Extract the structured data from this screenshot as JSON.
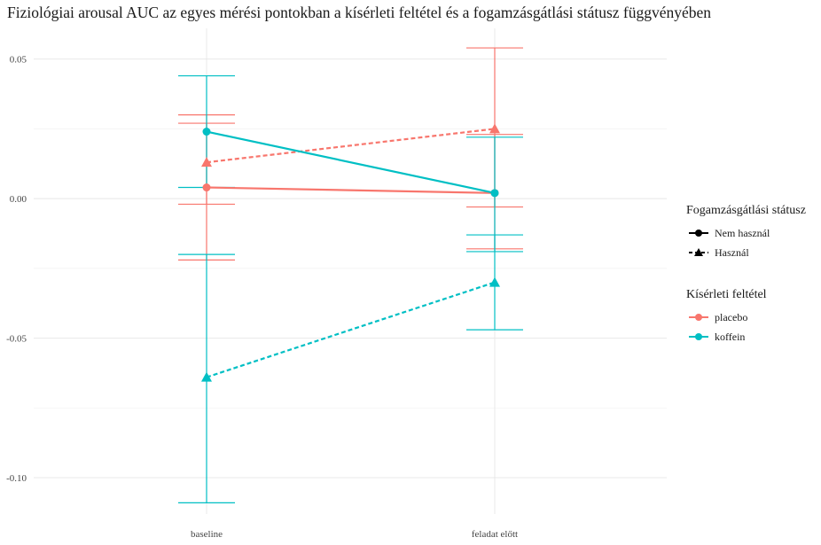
{
  "chart_data": {
    "type": "line",
    "title": "Fiziológiai arousal AUC az egyes mérési pontokban a kísérleti feltétel és a fogamzásgátlási státusz függvényében",
    "xlabel": "",
    "ylabel": "",
    "categories": [
      "baseline",
      "feladat előtt"
    ],
    "ylim": [
      -0.113,
      0.061
    ],
    "yticks": [
      0.05,
      0.0,
      -0.05,
      -0.1
    ],
    "ytick_labels": [
      "0.05",
      "0.00",
      "-0.05",
      "-0.10"
    ],
    "grid": true,
    "series": [
      {
        "condition": "placebo",
        "status": "Nem használ",
        "color": "#F8766D",
        "linetype": "solid",
        "shape": "circle",
        "values": [
          0.004,
          0.002
        ],
        "lower": [
          -0.022,
          -0.018
        ],
        "upper": [
          0.03,
          0.023
        ]
      },
      {
        "condition": "placebo",
        "status": "Használ",
        "color": "#F8766D",
        "linetype": "dashed",
        "shape": "triangle",
        "values": [
          0.013,
          0.025
        ],
        "lower": [
          -0.002,
          -0.003
        ],
        "upper": [
          0.027,
          0.054
        ]
      },
      {
        "condition": "koffein",
        "status": "Nem használ",
        "color": "#00BFC4",
        "linetype": "solid",
        "shape": "circle",
        "values": [
          0.024,
          0.002
        ],
        "lower": [
          0.004,
          -0.019
        ],
        "upper": [
          0.044,
          0.022
        ]
      },
      {
        "condition": "koffein",
        "status": "Használ",
        "color": "#00BFC4",
        "linetype": "dashed",
        "shape": "triangle",
        "values": [
          -0.064,
          -0.03
        ],
        "lower": [
          -0.109,
          -0.047
        ],
        "upper": [
          -0.02,
          -0.013
        ]
      }
    ],
    "legend": {
      "placement": "right",
      "status_title": "Fogamzásgátlási státusz",
      "status_items": [
        {
          "label": "Nem használ",
          "linetype": "solid",
          "shape": "circle"
        },
        {
          "label": "Használ",
          "linetype": "dashed",
          "shape": "triangle"
        }
      ],
      "condition_title": "Kísérleti feltétel",
      "condition_items": [
        {
          "label": "placebo",
          "color": "#F8766D"
        },
        {
          "label": "koffein",
          "color": "#00BFC4"
        }
      ]
    }
  }
}
